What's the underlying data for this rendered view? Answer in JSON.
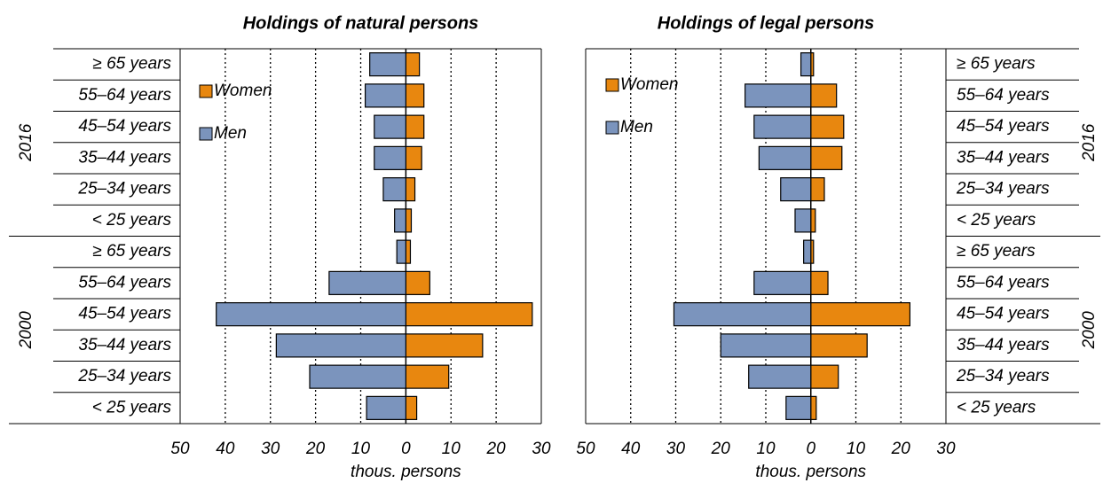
{
  "chart_data": [
    {
      "type": "bar",
      "orientation": "horizontal",
      "title": "Holdings of natural persons",
      "categories": [
        "≥ 65 years",
        "55–64 years",
        "45–54 years",
        "35–44 years",
        "25–34 years",
        "< 25 years",
        "≥ 65 years",
        "55–64 years",
        "45–54 years",
        "35–44 years",
        "25–34 years",
        "< 25 years"
      ],
      "groups": [
        "2016",
        "2000"
      ],
      "series": [
        {
          "name": "Women",
          "color": "#e8870f",
          "values": [
            3,
            4,
            4,
            3.5,
            2,
            1.2,
            1,
            5.3,
            28,
            17,
            9.5,
            2.4
          ]
        },
        {
          "name": "Men",
          "color": "#7b94bd",
          "values": [
            -8,
            -9,
            -7,
            -7,
            -5,
            -2.5,
            -2,
            -17,
            -42,
            -28.7,
            -21.3,
            -8.7
          ]
        }
      ],
      "xlim": [
        -50,
        30
      ],
      "xticks": [
        {
          "value": -50,
          "label": "50"
        },
        {
          "value": -40,
          "label": "40"
        },
        {
          "value": -30,
          "label": "30"
        },
        {
          "value": -20,
          "label": "20"
        },
        {
          "value": -10,
          "label": "10"
        },
        0,
        10,
        20,
        30
      ],
      "xlabel": "thous. persons",
      "grid": true,
      "legend": "upper left",
      "label_side": "left"
    },
    {
      "type": "bar",
      "orientation": "horizontal",
      "title": "Holdings of legal persons",
      "categories": [
        "≥ 65 years",
        "55–64 years",
        "45–54 years",
        "35–44 years",
        "25–34 years",
        "< 25 years",
        "≥ 65 years",
        "55–64 years",
        "45–54 years",
        "35–44 years",
        "25–34 years",
        "< 25 years"
      ],
      "groups": [
        "2016",
        "2000"
      ],
      "series": [
        {
          "name": "Women",
          "color": "#e8870f",
          "values": [
            0.6,
            5.7,
            7.3,
            6.9,
            3,
            1,
            0.6,
            3.8,
            22,
            12.5,
            6.1,
            1.2
          ]
        },
        {
          "name": "Men",
          "color": "#7b94bd",
          "values": [
            -2.2,
            -14.6,
            -12.6,
            -11.5,
            -6.7,
            -3.5,
            -1.6,
            -12.6,
            -30.4,
            -20,
            -13.8,
            -5.5
          ]
        }
      ],
      "xlim": [
        -50,
        30
      ],
      "xticks": [
        {
          "value": -50,
          "label": "50"
        },
        {
          "value": -40,
          "label": "40"
        },
        {
          "value": -30,
          "label": "30"
        },
        {
          "value": -20,
          "label": "20"
        },
        {
          "value": -10,
          "label": "10"
        },
        0,
        10,
        20,
        30
      ],
      "xlabel": "thous. persons",
      "grid": true,
      "legend": "upper left",
      "label_side": "right"
    }
  ]
}
